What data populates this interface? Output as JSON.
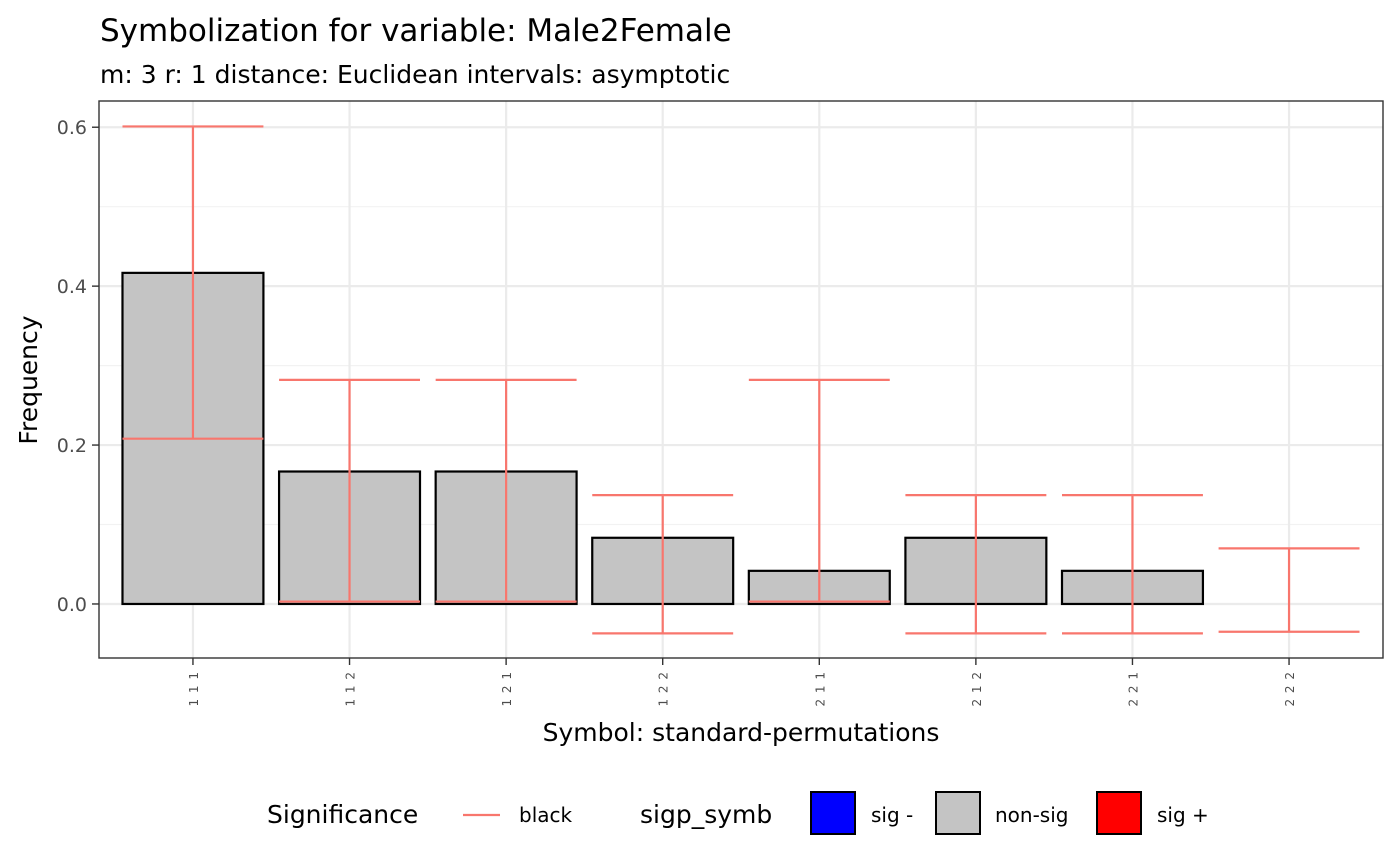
{
  "chart_data": {
    "type": "bar",
    "title": "Symbolization for variable: Male2Female",
    "subtitle": "m: 3  r:  1  distance:  Euclidean  intervals:  asymptotic",
    "xlabel": "Symbol: standard-permutations",
    "ylabel": "Frequency",
    "categories": [
      "1 1 1",
      "1 1 2",
      "1 2 1",
      "1 2 2",
      "2 1 1",
      "2 1 2",
      "2 2 1",
      "2 2 2"
    ],
    "values": [
      0.4167,
      0.1667,
      0.1667,
      0.0833,
      0.0417,
      0.0833,
      0.0417,
      0.0
    ],
    "error_lower": [
      0.208,
      0.003,
      0.003,
      -0.037,
      0.003,
      -0.037,
      -0.037,
      -0.035
    ],
    "error_upper": [
      0.601,
      0.282,
      0.282,
      0.137,
      0.282,
      0.137,
      0.137,
      0.07
    ],
    "yticks": [
      0.0,
      0.2,
      0.4,
      0.6
    ],
    "ytick_labels": [
      "0.0",
      "0.2",
      "0.4",
      "0.6"
    ],
    "ylim": [
      -0.068,
      0.633
    ],
    "grid": true,
    "bar_fill": "#c4c4c4",
    "errorbar_color": "#f8766d",
    "legend": {
      "position": "bottom",
      "significance": {
        "title": "Significance",
        "label": "black",
        "color": "#f8766d"
      },
      "sigp_symb": {
        "title": "sigp_symb",
        "items": [
          {
            "label": "sig -",
            "color": "#0000ff"
          },
          {
            "label": "non-sig",
            "color": "#c4c4c4"
          },
          {
            "label": "sig +",
            "color": "#ff0000"
          }
        ]
      }
    }
  }
}
